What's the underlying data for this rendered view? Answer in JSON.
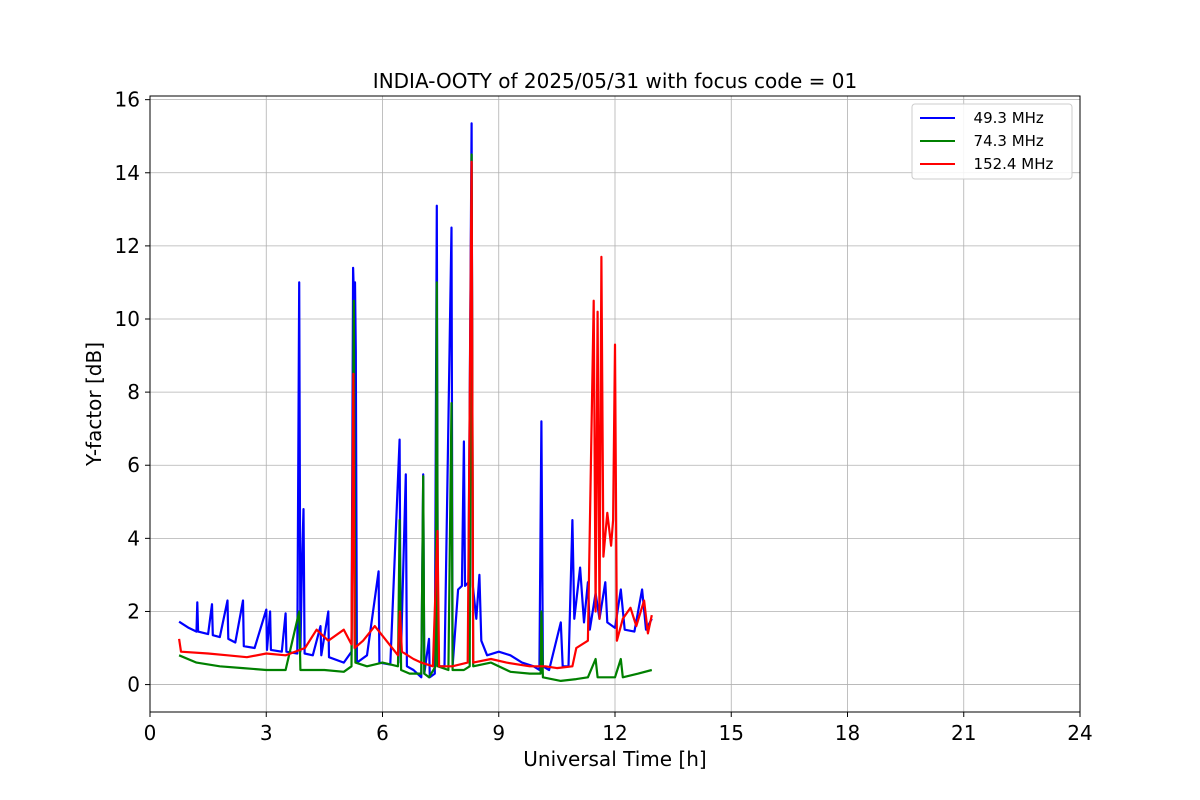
{
  "chart_data": {
    "type": "line",
    "title": "INDIA-OOTY of 2025/05/31 with focus code = 01",
    "xlabel": "Universal Time [h]",
    "ylabel": "Y-factor [dB]",
    "xlim": [
      0,
      24
    ],
    "ylim": [
      -0.75,
      16.1
    ],
    "xticks": [
      "0",
      "3",
      "6",
      "9",
      "12",
      "15",
      "18",
      "21",
      "24"
    ],
    "yticks": [
      "0",
      "2",
      "4",
      "6",
      "8",
      "10",
      "12",
      "14",
      "16"
    ],
    "grid": true,
    "legend_position": "upper right",
    "series": [
      {
        "name": "  49.3 MHz",
        "color": "#0000ff",
        "points": [
          [
            0.75,
            1.72
          ],
          [
            1.0,
            1.55
          ],
          [
            1.2,
            1.45
          ],
          [
            1.22,
            2.25
          ],
          [
            1.24,
            1.45
          ],
          [
            1.5,
            1.38
          ],
          [
            1.6,
            2.2
          ],
          [
            1.62,
            1.35
          ],
          [
            1.8,
            1.3
          ],
          [
            2.0,
            2.3
          ],
          [
            2.02,
            1.25
          ],
          [
            2.2,
            1.15
          ],
          [
            2.4,
            2.3
          ],
          [
            2.42,
            1.05
          ],
          [
            2.7,
            1.0
          ],
          [
            3.0,
            2.05
          ],
          [
            3.02,
            0.95
          ],
          [
            3.1,
            2.0
          ],
          [
            3.12,
            0.95
          ],
          [
            3.4,
            0.9
          ],
          [
            3.5,
            1.95
          ],
          [
            3.52,
            0.9
          ],
          [
            3.8,
            0.85
          ],
          [
            3.85,
            11.0
          ],
          [
            3.88,
            0.9
          ],
          [
            3.92,
            3.2
          ],
          [
            3.96,
            4.8
          ],
          [
            3.99,
            0.85
          ],
          [
            4.2,
            0.8
          ],
          [
            4.4,
            1.6
          ],
          [
            4.42,
            0.8
          ],
          [
            4.6,
            2.0
          ],
          [
            4.62,
            0.75
          ],
          [
            5.0,
            0.6
          ],
          [
            5.2,
            0.9
          ],
          [
            5.24,
            11.4
          ],
          [
            5.27,
            10.4
          ],
          [
            5.29,
            11.0
          ],
          [
            5.31,
            9.1
          ],
          [
            5.34,
            0.6
          ],
          [
            5.6,
            0.8
          ],
          [
            5.9,
            3.1
          ],
          [
            5.92,
            0.6
          ],
          [
            6.2,
            0.55
          ],
          [
            6.44,
            6.7
          ],
          [
            6.47,
            0.6
          ],
          [
            6.6,
            5.75
          ],
          [
            6.63,
            0.5
          ],
          [
            6.8,
            0.4
          ],
          [
            7.0,
            0.2
          ],
          [
            7.05,
            5.75
          ],
          [
            7.08,
            0.3
          ],
          [
            7.2,
            1.25
          ],
          [
            7.22,
            0.2
          ],
          [
            7.35,
            0.3
          ],
          [
            7.4,
            13.1
          ],
          [
            7.43,
            0.5
          ],
          [
            7.6,
            0.5
          ],
          [
            7.78,
            12.5
          ],
          [
            7.81,
            0.5
          ],
          [
            7.95,
            2.6
          ],
          [
            8.05,
            2.7
          ],
          [
            8.1,
            6.65
          ],
          [
            8.13,
            2.7
          ],
          [
            8.22,
            2.8
          ],
          [
            8.3,
            15.35
          ],
          [
            8.33,
            2.7
          ],
          [
            8.42,
            1.8
          ],
          [
            8.5,
            3.0
          ],
          [
            8.55,
            1.2
          ],
          [
            8.7,
            0.8
          ],
          [
            9.0,
            0.9
          ],
          [
            9.3,
            0.8
          ],
          [
            9.6,
            0.6
          ],
          [
            9.9,
            0.5
          ],
          [
            10.05,
            0.4
          ],
          [
            10.1,
            7.2
          ],
          [
            10.14,
            0.5
          ],
          [
            10.3,
            0.4
          ],
          [
            10.6,
            1.7
          ],
          [
            10.65,
            0.5
          ],
          [
            10.8,
            0.5
          ],
          [
            10.9,
            4.5
          ],
          [
            10.95,
            1.8
          ],
          [
            11.1,
            3.2
          ],
          [
            11.2,
            1.7
          ],
          [
            11.3,
            2.8
          ],
          [
            11.35,
            1.5
          ],
          [
            11.5,
            2.5
          ],
          [
            11.6,
            1.8
          ],
          [
            11.75,
            2.8
          ],
          [
            11.8,
            1.7
          ],
          [
            12.0,
            1.55
          ],
          [
            12.15,
            2.6
          ],
          [
            12.25,
            1.5
          ],
          [
            12.5,
            1.45
          ],
          [
            12.7,
            2.6
          ],
          [
            12.8,
            1.5
          ],
          [
            12.95,
            1.8
          ]
        ]
      },
      {
        "name": "  74.3 MHz",
        "color": "#008000",
        "points": [
          [
            0.75,
            0.8
          ],
          [
            1.2,
            0.6
          ],
          [
            1.8,
            0.5
          ],
          [
            2.4,
            0.45
          ],
          [
            3.0,
            0.4
          ],
          [
            3.5,
            0.4
          ],
          [
            3.85,
            2.0
          ],
          [
            3.88,
            0.4
          ],
          [
            4.5,
            0.4
          ],
          [
            5.0,
            0.35
          ],
          [
            5.2,
            0.5
          ],
          [
            5.26,
            10.5
          ],
          [
            5.3,
            0.6
          ],
          [
            5.6,
            0.5
          ],
          [
            6.0,
            0.6
          ],
          [
            6.4,
            0.5
          ],
          [
            6.44,
            4.5
          ],
          [
            6.48,
            0.4
          ],
          [
            6.7,
            0.3
          ],
          [
            7.0,
            0.3
          ],
          [
            7.05,
            5.7
          ],
          [
            7.08,
            0.3
          ],
          [
            7.2,
            0.2
          ],
          [
            7.37,
            0.5
          ],
          [
            7.4,
            11.0
          ],
          [
            7.43,
            0.5
          ],
          [
            7.7,
            0.4
          ],
          [
            7.78,
            7.7
          ],
          [
            7.81,
            0.4
          ],
          [
            8.1,
            0.4
          ],
          [
            8.25,
            0.5
          ],
          [
            8.3,
            14.5
          ],
          [
            8.34,
            0.5
          ],
          [
            8.8,
            0.6
          ],
          [
            9.3,
            0.35
          ],
          [
            9.8,
            0.3
          ],
          [
            10.08,
            0.3
          ],
          [
            10.1,
            2.0
          ],
          [
            10.14,
            0.2
          ],
          [
            10.6,
            0.1
          ],
          [
            11.0,
            0.15
          ],
          [
            11.3,
            0.2
          ],
          [
            11.5,
            0.7
          ],
          [
            11.55,
            0.2
          ],
          [
            12.0,
            0.2
          ],
          [
            12.15,
            0.7
          ],
          [
            12.2,
            0.2
          ],
          [
            12.6,
            0.3
          ],
          [
            12.95,
            0.4
          ]
        ]
      },
      {
        "name": "  152.4 MHz",
        "color": "#ff0000",
        "points": [
          [
            0.75,
            1.25
          ],
          [
            0.8,
            0.9
          ],
          [
            1.5,
            0.85
          ],
          [
            2.0,
            0.8
          ],
          [
            2.5,
            0.75
          ],
          [
            3.0,
            0.85
          ],
          [
            3.5,
            0.8
          ],
          [
            4.0,
            1.0
          ],
          [
            4.3,
            1.5
          ],
          [
            4.6,
            1.2
          ],
          [
            5.0,
            1.5
          ],
          [
            5.2,
            1.1
          ],
          [
            5.25,
            8.5
          ],
          [
            5.28,
            1.0
          ],
          [
            5.5,
            1.2
          ],
          [
            5.8,
            1.6
          ],
          [
            6.1,
            1.2
          ],
          [
            6.4,
            0.8
          ],
          [
            6.45,
            2.0
          ],
          [
            6.5,
            0.9
          ],
          [
            6.8,
            0.7
          ],
          [
            7.0,
            0.6
          ],
          [
            7.3,
            0.5
          ],
          [
            7.42,
            4.2
          ],
          [
            7.46,
            0.5
          ],
          [
            7.8,
            0.5
          ],
          [
            8.2,
            0.6
          ],
          [
            8.3,
            14.3
          ],
          [
            8.34,
            0.6
          ],
          [
            8.8,
            0.7
          ],
          [
            9.2,
            0.6
          ],
          [
            9.8,
            0.5
          ],
          [
            10.2,
            0.5
          ],
          [
            10.5,
            0.45
          ],
          [
            10.9,
            0.5
          ],
          [
            11.0,
            1.0
          ],
          [
            11.3,
            1.2
          ],
          [
            11.45,
            10.5
          ],
          [
            11.5,
            2.0
          ],
          [
            11.55,
            10.2
          ],
          [
            11.6,
            1.8
          ],
          [
            11.65,
            11.7
          ],
          [
            11.7,
            3.5
          ],
          [
            11.8,
            4.7
          ],
          [
            11.9,
            3.8
          ],
          [
            11.95,
            4.5
          ],
          [
            12.0,
            9.3
          ],
          [
            12.05,
            1.2
          ],
          [
            12.2,
            1.8
          ],
          [
            12.4,
            2.1
          ],
          [
            12.55,
            1.6
          ],
          [
            12.75,
            2.3
          ],
          [
            12.85,
            1.4
          ],
          [
            12.95,
            1.9
          ]
        ]
      }
    ]
  }
}
